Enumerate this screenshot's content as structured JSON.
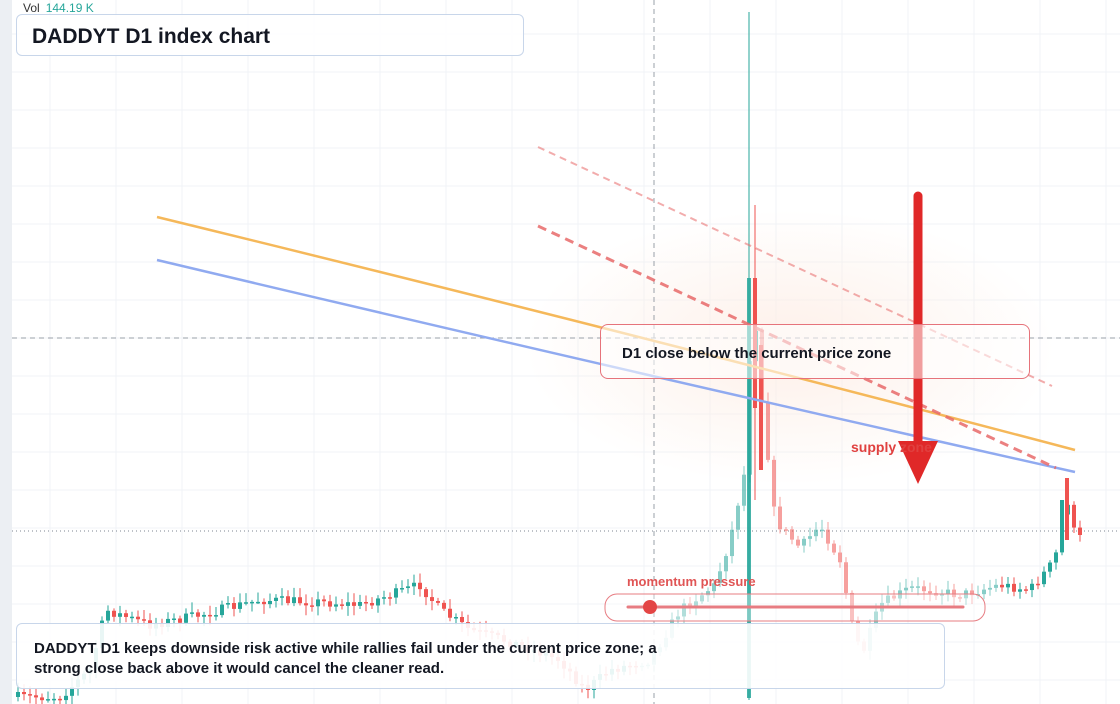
{
  "volume": {
    "label": "Vol",
    "value": "144.19 K"
  },
  "colors": {
    "up": "#26a69a",
    "down": "#ef5350",
    "upper_band": "#f5b85a",
    "lower_band": "#90aaf0",
    "trend_dashed": "#e86a6a",
    "arrow": "#e02828",
    "label_red": "#e0403f"
  },
  "chart_data": {
    "type": "candlestick",
    "title": "DADDYT D1 index chart",
    "timeframe": "D1",
    "grid": true,
    "overlays": {
      "upper_band": {
        "color": "#f5b85a",
        "style": "solid"
      },
      "lower_band": {
        "color": "#90aaf0",
        "style": "solid"
      },
      "descending_trendlines": {
        "color": "#e86a6a",
        "style": "dashed",
        "count": 2
      },
      "bearish_arrow": {
        "direction": "down",
        "color": "#e02828"
      }
    },
    "annotations": {
      "zone_label": "D1 close below the current price zone",
      "supply_label": "supply zone",
      "momentum_label": "momentum pressure"
    },
    "summary": "DADDYT D1 keeps downside risk active while rallies fail under the current price zone; a strong close back above it would cancel the cleaner read."
  }
}
